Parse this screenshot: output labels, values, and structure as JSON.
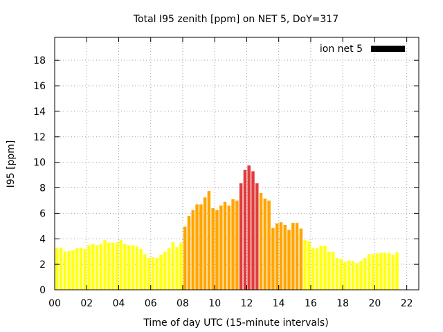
{
  "chart_data": {
    "type": "bar",
    "title": "Total I95 zenith [ppm] on NET 5, DoY=317",
    "xlabel": "Time of day UTC (15-minute intervals)",
    "ylabel": "I95 [ppm]",
    "xlim": [
      0,
      22.75
    ],
    "ylim": [
      0,
      19.8
    ],
    "x_ticks": [
      0,
      2,
      4,
      6,
      8,
      10,
      12,
      14,
      16,
      18,
      20,
      22
    ],
    "x_tick_labels": [
      "00",
      "02",
      "04",
      "06",
      "08",
      "10",
      "12",
      "14",
      "16",
      "18",
      "20",
      "22"
    ],
    "y_ticks": [
      0,
      2,
      4,
      6,
      8,
      10,
      12,
      14,
      16,
      18
    ],
    "grid": true,
    "legend_position": "top-right",
    "bar_interval_hours": 0.25,
    "series": [
      {
        "name": "ion net 5",
        "color": "#000000",
        "values": [
          3.3,
          3.3,
          3.0,
          3.05,
          3.1,
          3.25,
          3.3,
          3.2,
          3.5,
          3.6,
          3.5,
          3.6,
          3.9,
          3.7,
          3.7,
          3.7,
          3.9,
          3.6,
          3.5,
          3.5,
          3.4,
          3.2,
          2.8,
          2.5,
          2.55,
          2.5,
          2.75,
          3.0,
          3.25,
          3.75,
          3.35,
          3.7,
          4.95,
          5.8,
          6.25,
          6.7,
          6.7,
          7.25,
          7.75,
          6.4,
          6.25,
          6.6,
          6.9,
          6.6,
          7.1,
          7.0,
          8.35,
          9.4,
          9.75,
          9.3,
          8.35,
          7.6,
          7.15,
          7.0,
          4.85,
          5.2,
          5.3,
          5.1,
          4.7,
          5.25,
          5.25,
          4.8,
          3.9,
          3.8,
          3.3,
          3.25,
          3.45,
          3.45,
          3.0,
          3.0,
          2.5,
          2.4,
          2.2,
          2.3,
          2.25,
          2.1,
          2.25,
          2.5,
          2.8,
          2.8,
          2.85,
          2.9,
          2.9,
          2.9,
          2.75,
          2.95
        ]
      }
    ],
    "bar_colors_by_level": [
      {
        "max": 4,
        "color": "#ffff1a"
      },
      {
        "max": 8,
        "color": "#ffa500"
      },
      {
        "max": 99,
        "color": "#e03c3c"
      }
    ],
    "legend_color": "#000000",
    "grid_color": "#a0a0a0"
  }
}
